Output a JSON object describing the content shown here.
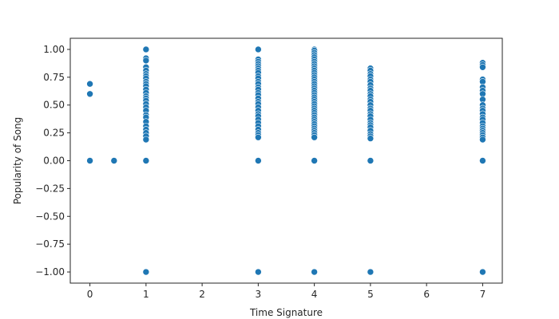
{
  "chart_data": {
    "type": "scatter",
    "xlabel": "Time Signature",
    "ylabel": "Popularity of Song",
    "xlim": [
      -0.35,
      7.35
    ],
    "ylim": [
      -1.1,
      1.1
    ],
    "xticks": [
      0,
      1,
      2,
      3,
      4,
      5,
      6,
      7
    ],
    "xtick_labels": [
      "0",
      "1",
      "2",
      "3",
      "4",
      "5",
      "6",
      "7"
    ],
    "yticks": [
      -1.0,
      -0.75,
      -0.5,
      -0.25,
      0.0,
      0.25,
      0.5,
      0.75,
      1.0
    ],
    "ytick_labels": [
      "−1.00",
      "−0.75",
      "−0.50",
      "−0.25",
      "0.00",
      "0.25",
      "0.50",
      "0.75",
      "1.00"
    ],
    "grid": false,
    "color": "#1f77b4",
    "points": [
      {
        "x": 0,
        "y": [
          0.69,
          0.6,
          0.0
        ]
      },
      {
        "x": 0.43,
        "y": [
          0.0
        ]
      },
      {
        "x": 1,
        "y": [
          1.0,
          0.92,
          0.9,
          0.84,
          0.81,
          0.78,
          0.76,
          0.74,
          0.71,
          0.69,
          0.67,
          0.64,
          0.61,
          0.58,
          0.56,
          0.54,
          0.51,
          0.48,
          0.45,
          0.41,
          0.39,
          0.35,
          0.31,
          0.28,
          0.25,
          0.22,
          0.19,
          0.0,
          -1.0
        ]
      },
      {
        "x": 3,
        "y": [
          1.0,
          0.91,
          0.89,
          0.87,
          0.85,
          0.83,
          0.81,
          0.79,
          0.76,
          0.74,
          0.71,
          0.69,
          0.66,
          0.64,
          0.61,
          0.59,
          0.56,
          0.53,
          0.51,
          0.48,
          0.45,
          0.42,
          0.4,
          0.37,
          0.34,
          0.31,
          0.28,
          0.25,
          0.23,
          0.21,
          0.0,
          -1.0
        ]
      },
      {
        "x": 4,
        "y": [
          1.0,
          0.99,
          0.97,
          0.95,
          0.93,
          0.91,
          0.89,
          0.87,
          0.85,
          0.83,
          0.81,
          0.79,
          0.77,
          0.75,
          0.73,
          0.71,
          0.69,
          0.67,
          0.65,
          0.63,
          0.61,
          0.59,
          0.57,
          0.55,
          0.53,
          0.51,
          0.49,
          0.47,
          0.45,
          0.43,
          0.41,
          0.39,
          0.37,
          0.35,
          0.33,
          0.31,
          0.29,
          0.27,
          0.25,
          0.23,
          0.21,
          0.0,
          -1.0
        ]
      },
      {
        "x": 5,
        "y": [
          0.83,
          0.81,
          0.78,
          0.76,
          0.73,
          0.71,
          0.68,
          0.65,
          0.63,
          0.6,
          0.58,
          0.55,
          0.53,
          0.5,
          0.47,
          0.45,
          0.42,
          0.4,
          0.37,
          0.34,
          0.32,
          0.3,
          0.27,
          0.24,
          0.22,
          0.2,
          0.0,
          -1.0
        ]
      },
      {
        "x": 7,
        "y": [
          0.88,
          0.86,
          0.84,
          0.73,
          0.71,
          0.66,
          0.63,
          0.6,
          0.55,
          0.5,
          0.47,
          0.45,
          0.42,
          0.39,
          0.37,
          0.34,
          0.31,
          0.29,
          0.27,
          0.25,
          0.23,
          0.21,
          0.19,
          0.0,
          -1.0
        ]
      }
    ]
  }
}
